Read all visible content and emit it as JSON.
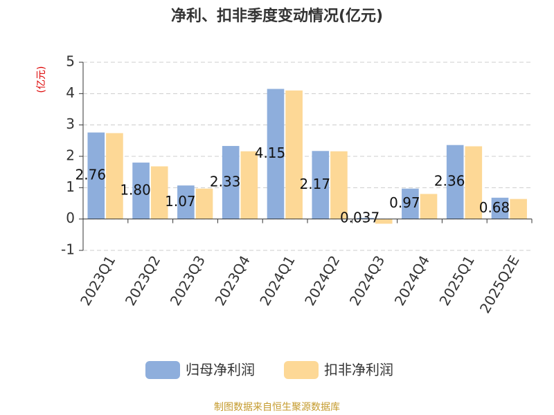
{
  "chart_data": {
    "type": "bar",
    "title": "净利、扣非季度变动情况(亿元)",
    "y_label": "(亿元)",
    "categories": [
      "2023Q1",
      "2023Q2",
      "2023Q3",
      "2023Q4",
      "2024Q1",
      "2024Q2",
      "2024Q3",
      "2024Q4",
      "2025Q1",
      "2025Q2E"
    ],
    "series": [
      {
        "name": "归母净利润",
        "color": "#8eaedc",
        "values": [
          2.76,
          1.8,
          1.07,
          2.33,
          4.15,
          2.17,
          0.037,
          0.97,
          2.36,
          0.68
        ],
        "value_labels": [
          "2.76",
          "1.80",
          "1.07",
          "2.33",
          "4.15",
          "2.17",
          "0.037",
          "0.97",
          "2.36",
          "0.68"
        ]
      },
      {
        "name": "扣非净利润",
        "color": "#fdd896",
        "values": [
          2.74,
          1.68,
          0.97,
          2.16,
          4.1,
          2.16,
          -0.15,
          0.8,
          2.32,
          0.64
        ]
      }
    ],
    "ylim": [
      -1,
      5
    ],
    "yticks": [
      -1,
      0,
      1,
      2,
      3,
      4,
      5
    ],
    "grid": true,
    "source": "制图数据来自恒生聚源数据库"
  }
}
